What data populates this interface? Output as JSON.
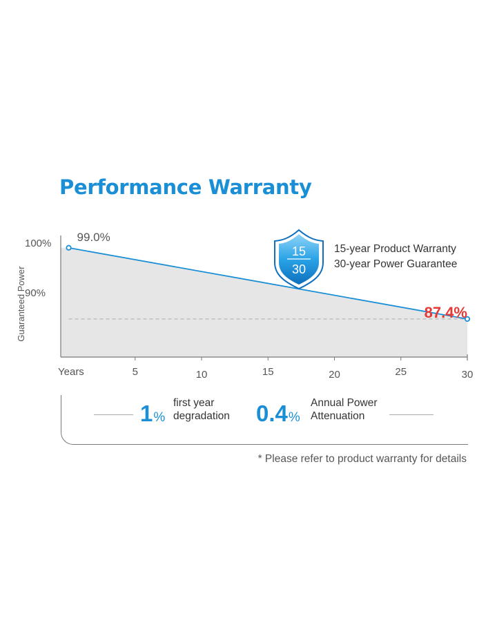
{
  "header": {
    "title": "Performance Warranty"
  },
  "badge": {
    "top_number": "15",
    "bottom_number": "30"
  },
  "warranty": {
    "product_line": "15-year Product  Warranty",
    "power_line": "30-year Power Guarantee"
  },
  "chart_data": {
    "type": "area",
    "ylabel": "Guaranteed Power",
    "x_ticks": [
      {
        "value": 0,
        "label": "Years"
      },
      {
        "value": 5,
        "label": "5"
      },
      {
        "value": 10,
        "label": "10"
      },
      {
        "value": 15,
        "label": "15"
      },
      {
        "value": 20,
        "label": "20"
      },
      {
        "value": 25,
        "label": "25"
      },
      {
        "value": 30,
        "label": "30"
      }
    ],
    "y_ticks": [
      {
        "value": 100,
        "label": "100%"
      },
      {
        "value": 90,
        "label": "90%"
      }
    ],
    "xlim": [
      -0.6,
      30
    ],
    "ylim": [
      81.2,
      101
    ],
    "series": [
      {
        "x": [
          0,
          30
        ],
        "y": [
          99.0,
          87.4
        ]
      }
    ],
    "annotations": [
      {
        "x": 0,
        "y": 99.0,
        "label": "99.0%",
        "color": "#555555"
      },
      {
        "x": 30,
        "y": 87.4,
        "label": "87.4%",
        "color": "#e53935"
      }
    ],
    "reference_line": {
      "y": 87.4,
      "style": "dashed"
    },
    "colors": {
      "line": "#1a8fd6",
      "fill": "#e6e6e6",
      "axis": "#777777",
      "highlight": "#e53935"
    }
  },
  "stats": {
    "first": {
      "value": "1",
      "unit": "%",
      "label_line1": "first year",
      "label_line2": "degradation"
    },
    "second": {
      "value": "0.4",
      "unit": "%",
      "label_line1": "Annual Power",
      "label_line2": "Attenuation"
    }
  },
  "footnote": "* Please refer to product warranty for details"
}
